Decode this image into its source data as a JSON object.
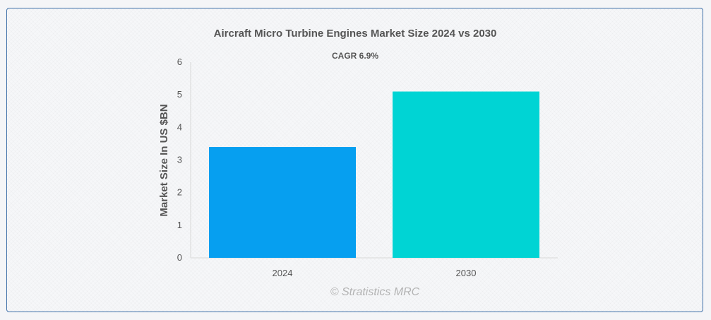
{
  "chart_data": {
    "type": "bar",
    "title": "Aircraft Micro Turbine Engines Market Size 2024 vs 2030",
    "subtitle": "CAGR 6.9%",
    "xlabel": "",
    "ylabel": "Market Size In US $BN",
    "categories": [
      "2024",
      "2030"
    ],
    "values": [
      3.4,
      5.1
    ],
    "colors": [
      "#069ff0",
      "#00d4d4"
    ],
    "ylim": [
      0,
      6
    ],
    "yticks": [
      "0",
      "1",
      "2",
      "3",
      "4",
      "5",
      "6"
    ],
    "grid": false,
    "legend": "none"
  },
  "watermark": "© Stratistics MRC"
}
